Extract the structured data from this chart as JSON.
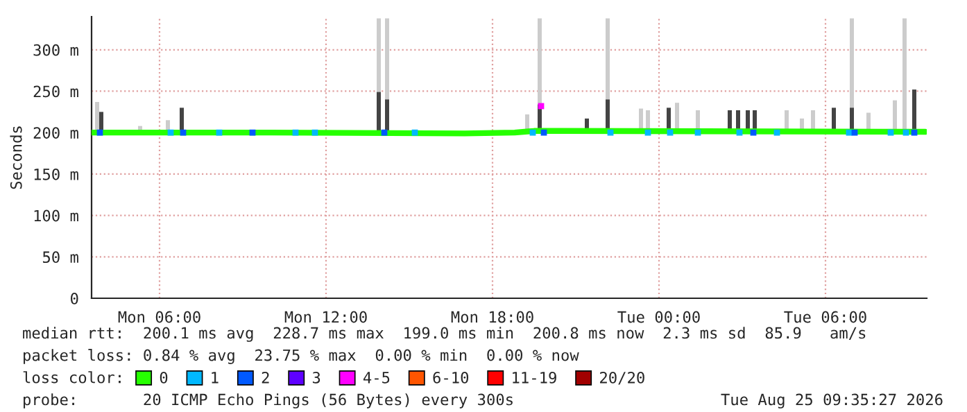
{
  "chart_data": {
    "type": "line",
    "ylabel": "Seconds",
    "xlim": [
      "2026-08-24T03:33",
      "2026-08-25T09:39"
    ],
    "ylim": [
      0,
      340
    ],
    "xticks": [
      {
        "value": "2026-08-24T06:00",
        "label": "Mon 06:00"
      },
      {
        "value": "2026-08-24T12:00",
        "label": "Mon 12:00"
      },
      {
        "value": "2026-08-24T18:00",
        "label": "Mon 18:00"
      },
      {
        "value": "2026-08-25T00:00",
        "label": "Tue 00:00"
      },
      {
        "value": "2026-08-25T06:00",
        "label": "Tue 06:00"
      }
    ],
    "yticks": [
      0,
      {
        "value": 50,
        "label": "50 m"
      },
      {
        "value": 100,
        "label": "100 m"
      },
      {
        "value": 150,
        "label": "150 m"
      },
      {
        "value": 200,
        "label": "200 m"
      },
      {
        "value": 250,
        "label": "250 m"
      },
      {
        "value": 300,
        "label": "300 m"
      }
    ],
    "grid": true,
    "legend": "bottom",
    "legend_title": "loss color:",
    "series": [
      {
        "type": "bar",
        "color": "#cccccc",
        "x": [
          "2026-08-24T03:45",
          "2026-08-24T05:18",
          "2026-08-24T06:18",
          "2026-08-24T13:54",
          "2026-08-24T14:12",
          "2026-08-24T19:15",
          "2026-08-24T19:42",
          "2026-08-24T22:09",
          "2026-08-24T23:21",
          "2026-08-24T23:36",
          "2026-08-25T00:39",
          "2026-08-25T01:24",
          "2026-08-25T04:36",
          "2026-08-25T05:09",
          "2026-08-25T05:33",
          "2026-08-25T06:57",
          "2026-08-25T07:33",
          "2026-08-25T08:30",
          "2026-08-25T08:51"
        ],
        "base": [
          200,
          200,
          200,
          200,
          200,
          200,
          200,
          200,
          200,
          200,
          200,
          200,
          200,
          200,
          200,
          200,
          200,
          200,
          200
        ],
        "values": [
          37,
          8,
          15,
          138,
          138,
          22,
          138,
          138,
          29,
          27,
          36,
          27,
          27,
          17,
          27,
          138,
          24,
          39,
          138
        ]
      },
      {
        "type": "bar",
        "color": "#444444",
        "x": [
          "2026-08-24T03:54",
          "2026-08-24T06:48",
          "2026-08-24T13:54",
          "2026-08-24T14:12",
          "2026-08-24T19:42",
          "2026-08-24T21:24",
          "2026-08-24T22:09",
          "2026-08-25T00:21",
          "2026-08-25T02:33",
          "2026-08-25T02:51",
          "2026-08-25T03:12",
          "2026-08-25T03:27",
          "2026-08-25T06:18",
          "2026-08-25T06:57",
          "2026-08-25T09:12"
        ],
        "base": [
          200,
          200,
          200,
          200,
          200,
          200,
          200,
          200,
          200,
          200,
          200,
          200,
          200,
          200,
          200
        ],
        "values": [
          25,
          30,
          49,
          40,
          34,
          17,
          40,
          30,
          27,
          27,
          27,
          27,
          30,
          30,
          52
        ]
      },
      {
        "name": "0",
        "color": "#26ff00",
        "x": [
          "2026-08-24T03:33",
          "2026-08-24T10:00",
          "2026-08-24T17:00",
          "2026-08-24T18:48",
          "2026-08-24T19:30",
          "2026-08-24T20:30",
          "2026-08-25T09:36"
        ],
        "values": [
          200,
          200,
          199,
          200,
          202,
          202,
          201
        ]
      },
      {
        "name": "1",
        "type": "scatter",
        "marker": "square",
        "color": "#00b8ff",
        "x": [
          "2026-08-24T06:24",
          "2026-08-24T08:09",
          "2026-08-24T10:54",
          "2026-08-24T11:36",
          "2026-08-24T15:12",
          "2026-08-24T19:27",
          "2026-08-24T22:15",
          "2026-08-24T23:36",
          "2026-08-25T00:24",
          "2026-08-25T01:24",
          "2026-08-25T02:54",
          "2026-08-25T04:15",
          "2026-08-25T06:51",
          "2026-08-25T08:21",
          "2026-08-25T08:54"
        ],
        "values": [
          200,
          200,
          200,
          200,
          200,
          200,
          200,
          200,
          200,
          200,
          200,
          200,
          200,
          200,
          200
        ]
      },
      {
        "name": "2",
        "type": "scatter",
        "marker": "square",
        "color": "#0059ff",
        "x": [
          "2026-08-24T03:51",
          "2026-08-24T06:51",
          "2026-08-24T09:21",
          "2026-08-24T14:06",
          "2026-08-24T19:51",
          "2026-08-25T03:24",
          "2026-08-25T07:03",
          "2026-08-25T09:12"
        ],
        "values": [
          200,
          200,
          200,
          200,
          200,
          200,
          200,
          200
        ]
      },
      {
        "name": "3",
        "type": "scatter",
        "color": "#5e00ff"
      },
      {
        "name": "4-5",
        "type": "scatter",
        "marker": "square",
        "color": "#ff00ff",
        "x": [
          "2026-08-24T19:45"
        ],
        "values": [
          232
        ]
      },
      {
        "name": "6-10",
        "type": "scatter",
        "color": "#ff5500"
      },
      {
        "name": "11-19",
        "type": "scatter",
        "color": "#ff0000"
      },
      {
        "name": "20/20",
        "type": "scatter",
        "color": "#a10000"
      }
    ],
    "annotations": [
      "median rtt:  200.1 ms avg  228.7 ms max  199.0 ms min  200.8 ms now  2.3 ms sd  85.9   am/s",
      "packet loss: 0.84 % avg  23.75 % max  0.00 % min  0.00 % now",
      "probe:       20 ICMP Echo Pings (56 Bytes) every 300s",
      "Tue Aug 25 09:35:27 2026"
    ]
  }
}
